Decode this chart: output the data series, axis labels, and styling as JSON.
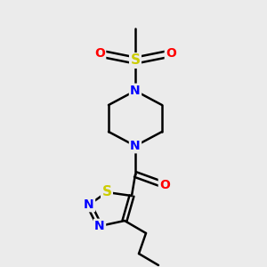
{
  "bg_color": "#ebebeb",
  "bond_color": "#000000",
  "lw": 1.8,
  "fs": 10,
  "colors": {
    "S": "#cccc00",
    "N": "#0000ff",
    "O": "#ff0000",
    "C": "#000000"
  }
}
